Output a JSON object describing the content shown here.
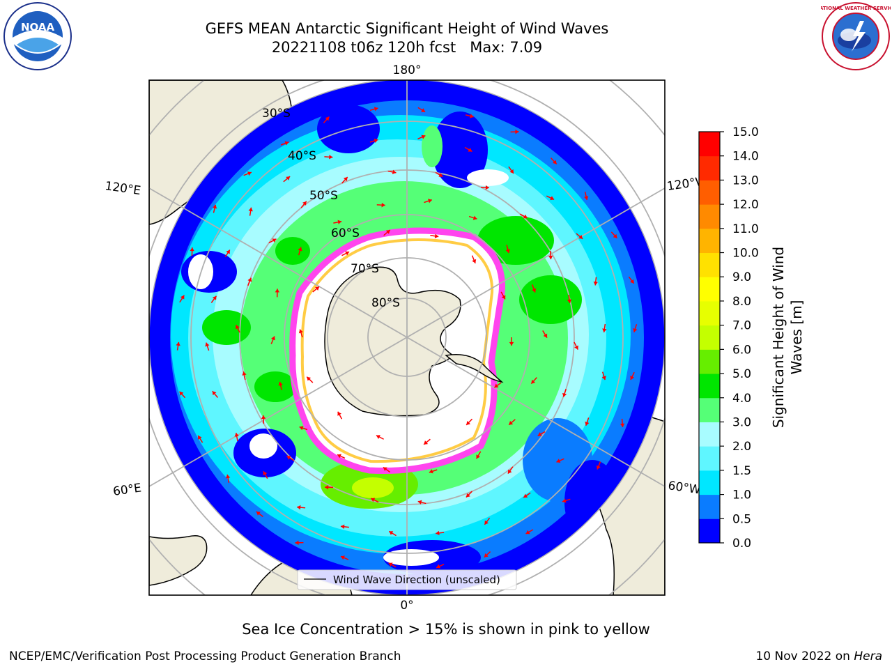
{
  "header": {
    "title_line1": "GEFS MEAN Antarctic Significant Height of Wind Waves",
    "title_line2": "20221108 t06z 120h fcst   Max: 7.09",
    "logo_left_text": "NOAA",
    "logo_left_ring": "NATIONAL OCEANIC AND ATMOSPHERIC ADMINISTRATION • U.S. DEPARTMENT OF COMMERCE",
    "logo_right_ring": "NATIONAL WEATHER SERVICE"
  },
  "map": {
    "projection": "South polar stereographic",
    "longitude_labels": [
      "180°",
      "120°E",
      "120°W",
      "60°E",
      "60°W",
      "0°"
    ],
    "latitude_labels": [
      "30°S",
      "40°S",
      "50°S",
      "60°S",
      "70°S",
      "80°S"
    ],
    "legend_label": "Wind Wave Direction (unscaled)",
    "colors": {
      "land": "#efecdb",
      "ice_edge": "#ff44ee",
      "ice_yellow": "#ffcc44",
      "arrow": "#ff0000",
      "grid": "#b0b0b0"
    }
  },
  "colorbar": {
    "label_line1": "Significant Height of Wind",
    "label_line2": "Waves [m]",
    "ticks": [
      "0.0",
      "0.5",
      "1.0",
      "1.5",
      "2.0",
      "3.0",
      "4.0",
      "5.0",
      "6.0",
      "7.0",
      "8.0",
      "9.0",
      "10.0",
      "11.0",
      "12.0",
      "13.0",
      "14.0",
      "15.0"
    ],
    "colors": [
      "#0000ff",
      "#0a7cff",
      "#00e7ff",
      "#5ff6ff",
      "#a8fcff",
      "#55ff77",
      "#00e600",
      "#66ee00",
      "#c4ff00",
      "#e7ff00",
      "#ffff00",
      "#ffe100",
      "#ffb400",
      "#ff8a00",
      "#ff5e00",
      "#ff2a00",
      "#ff0000"
    ]
  },
  "footer": {
    "note": "Sea Ice Concentration > 15% is shown in pink to yellow",
    "left": "NCEP/EMC/Verification Post Processing Product Generation Branch",
    "right_prefix": "10 Nov 2022 on ",
    "right_machine": "Hera"
  }
}
